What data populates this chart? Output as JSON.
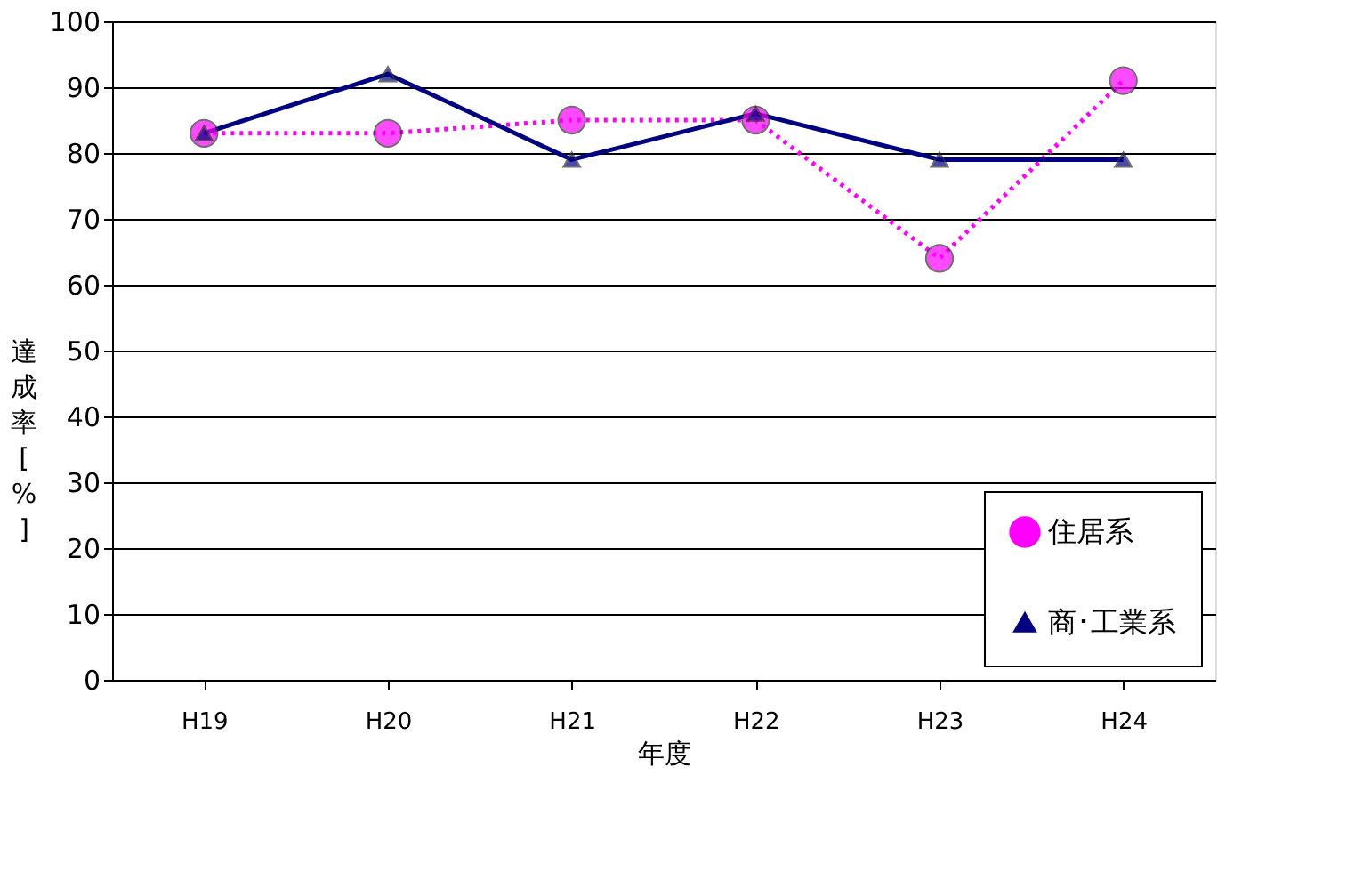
{
  "chart_data": {
    "type": "line",
    "xlabel": "年度",
    "ylabel": "達成率[%]",
    "categories": [
      "H19",
      "H20",
      "H21",
      "H22",
      "H23",
      "H24"
    ],
    "series": [
      {
        "name": "住居系",
        "color": "#ff00ff",
        "marker": "circle",
        "line_style": "dotted",
        "values": [
          83,
          83,
          85,
          85,
          64,
          91
        ]
      },
      {
        "name": "商･工業系",
        "color": "#000080",
        "marker": "triangle",
        "line_style": "solid",
        "values": [
          83,
          92,
          79,
          86,
          79,
          79
        ]
      }
    ],
    "ylim": [
      0,
      100
    ],
    "yticks": [
      0,
      10,
      20,
      30,
      40,
      50,
      60,
      70,
      80,
      90,
      100
    ],
    "grid": "y",
    "legend": "bottom right"
  }
}
